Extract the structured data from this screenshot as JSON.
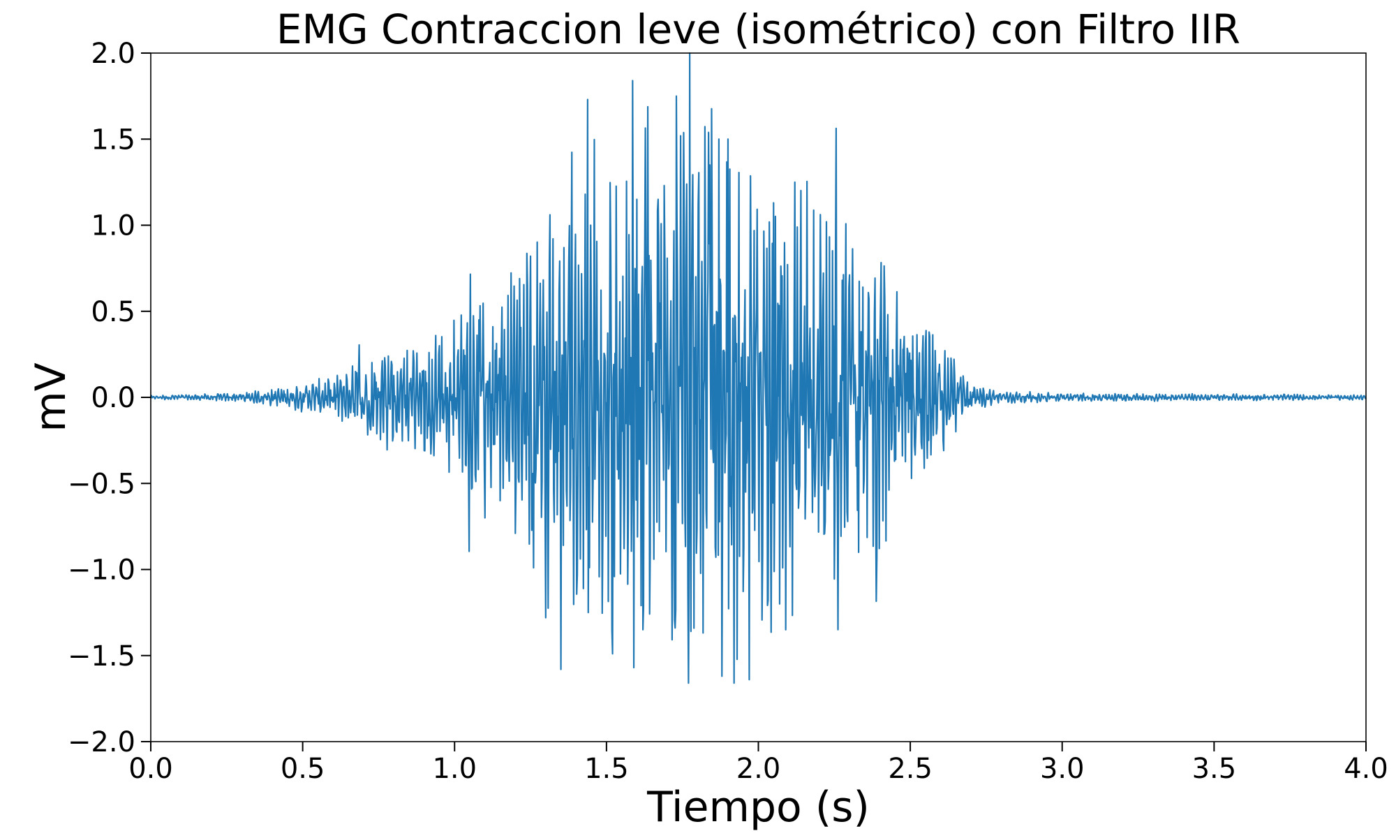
{
  "chart_data": {
    "type": "line",
    "title": "EMG Contraccion leve (isométrico) con Filtro IIR",
    "xlabel": "Tiempo (s)",
    "ylabel": "mV",
    "xlim": [
      0.0,
      4.0
    ],
    "ylim": [
      -2.0,
      2.0
    ],
    "x_ticks": [
      "0.0",
      "0.5",
      "1.0",
      "1.5",
      "2.0",
      "2.5",
      "3.0",
      "3.5",
      "4.0"
    ],
    "y_ticks": [
      "2.0",
      "1.5",
      "1.0",
      "0.5",
      "0.0",
      "−0.5",
      "−1.0",
      "−1.5",
      "−2.0"
    ],
    "grid": false,
    "legend": "none",
    "series_color": "#1f77b4",
    "sampling": {
      "t_start": 0.0,
      "t_end": 4.0,
      "dt": 0.002
    },
    "series": [
      {
        "envelope_mV": [
          [
            0.0,
            0.01
          ],
          [
            0.3,
            0.02
          ],
          [
            0.45,
            0.05
          ],
          [
            0.6,
            0.1
          ],
          [
            0.7,
            0.18
          ],
          [
            0.85,
            0.22
          ],
          [
            0.95,
            0.3
          ],
          [
            1.05,
            0.45
          ],
          [
            1.2,
            0.6
          ],
          [
            1.3,
            0.85
          ],
          [
            1.45,
            1.05
          ],
          [
            1.6,
            1.15
          ],
          [
            1.73,
            1.25
          ],
          [
            1.85,
            1.3
          ],
          [
            1.95,
            1.2
          ],
          [
            2.1,
            1.05
          ],
          [
            2.25,
            0.85
          ],
          [
            2.38,
            0.75
          ],
          [
            2.5,
            0.4
          ],
          [
            2.62,
            0.25
          ],
          [
            2.7,
            0.06
          ],
          [
            2.8,
            0.03
          ],
          [
            3.0,
            0.02
          ],
          [
            4.0,
            0.012
          ]
        ],
        "peaks": [
          [
            1.73,
            1.75
          ],
          [
            1.87,
            1.5
          ],
          [
            1.9,
            1.5
          ],
          [
            1.84,
            1.35
          ],
          [
            2.12,
            1.25
          ],
          [
            1.43,
            1.18
          ],
          [
            1.6,
            1.15
          ],
          [
            1.67,
            1.15
          ],
          [
            2.05,
            1.13
          ],
          [
            1.36,
            0.87
          ],
          [
            1.25,
            0.82
          ],
          [
            1.08,
            0.45
          ],
          [
            0.95,
            0.3
          ],
          [
            1.77,
            -1.66
          ],
          [
            1.92,
            -1.66
          ],
          [
            1.97,
            -1.64
          ],
          [
            1.88,
            -1.62
          ],
          [
            1.35,
            -1.58
          ],
          [
            1.59,
            -1.57
          ],
          [
            1.52,
            -1.49
          ],
          [
            1.62,
            -1.35
          ],
          [
            1.3,
            -1.28
          ],
          [
            2.09,
            -1.35
          ],
          [
            1.44,
            -1.25
          ],
          [
            2.07,
            -1.2
          ],
          [
            1.26,
            -0.99
          ],
          [
            2.39,
            -0.93
          ],
          [
            2.33,
            -0.9
          ],
          [
            1.1,
            -0.7
          ],
          [
            1.15,
            -0.6
          ],
          [
            2.56,
            -0.25
          ]
        ]
      }
    ]
  }
}
